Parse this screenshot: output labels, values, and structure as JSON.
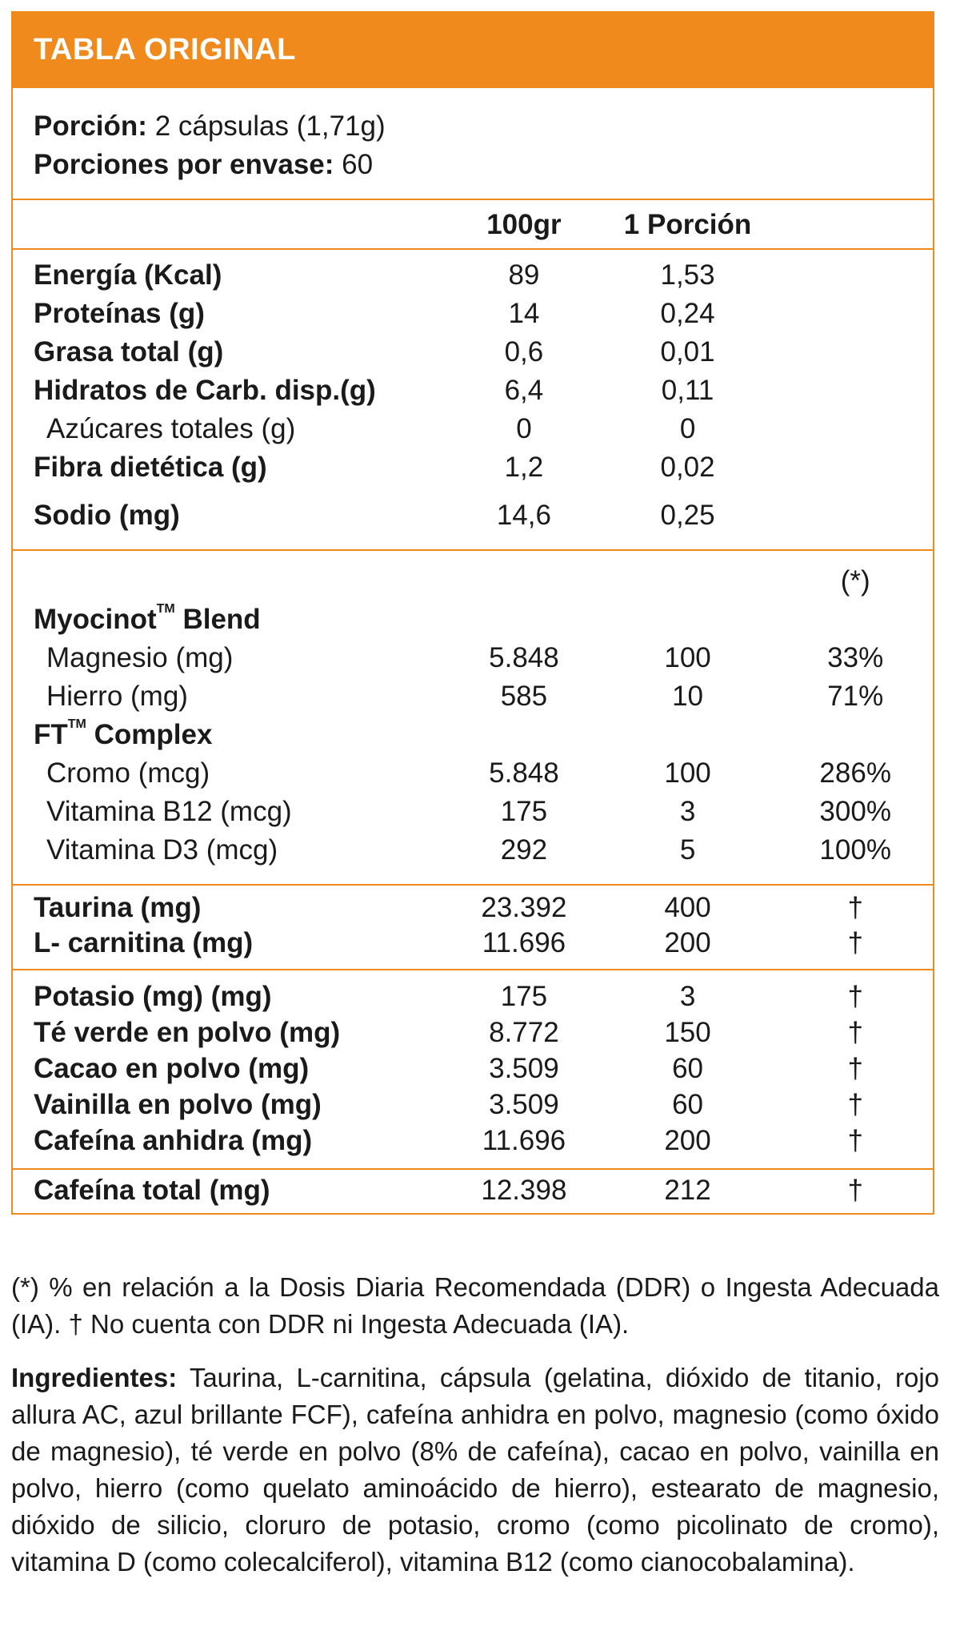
{
  "header": {
    "title": "TABLA ORIGINAL"
  },
  "serving": {
    "portion_label": "Porción:",
    "portion_value": "2 cápsulas (1,71g)",
    "servings_label": "Porciones por envase:",
    "servings_value": "60"
  },
  "columns": {
    "c1": "100gr",
    "c2": "1 Porción"
  },
  "nutrients": [
    {
      "label": "Energía (Kcal)",
      "v100": "89",
      "vp": "1,53",
      "bold": true
    },
    {
      "label": "Proteínas (g)",
      "v100": "14",
      "vp": "0,24",
      "bold": true
    },
    {
      "label": "Grasa total (g)",
      "v100": "0,6",
      "vp": "0,01",
      "bold": true
    },
    {
      "label": "Hidratos de Carb. disp.(g)",
      "v100": "6,4",
      "vp": "0,11",
      "bold": true
    },
    {
      "label": "Azúcares totales (g)",
      "v100": "0",
      "vp": "0",
      "bold": false
    },
    {
      "label": "Fibra dietética (g)",
      "v100": "1,2",
      "vp": "0,02",
      "bold": true
    },
    {
      "label": "Sodio (mg)",
      "v100": "14,6",
      "vp": "0,25",
      "bold": true
    }
  ],
  "blends": {
    "ddr_marker": "(*)",
    "myocinot_name": "Myocinot",
    "myocinot_tm": "TM",
    "myocinot_suffix": "Blend",
    "myocinot_items": [
      {
        "label": "Magnesio (mg)",
        "v100": "5.848",
        "vp": "100",
        "ddr": "33%"
      },
      {
        "label": "Hierro (mg)",
        "v100": "585",
        "vp": "10",
        "ddr": "71%"
      }
    ],
    "ft_name": "FT",
    "ft_tm": "TM",
    "ft_suffix": "Complex",
    "ft_items": [
      {
        "label": "Cromo (mcg)",
        "v100": "5.848",
        "vp": "100",
        "ddr": "286%"
      },
      {
        "label": "Vitamina B12 (mcg)",
        "v100": "175",
        "vp": "3",
        "ddr": "300%"
      },
      {
        "label": "Vitamina D3 (mcg)",
        "v100": "292",
        "vp": "5",
        "ddr": "100%"
      }
    ]
  },
  "amino": [
    {
      "label": "Taurina (mg)",
      "v100": "23.392",
      "vp": "400",
      "ddr": "†"
    },
    {
      "label": "L- carnitina (mg)",
      "v100": "11.696",
      "vp": "200",
      "ddr": "†"
    }
  ],
  "others": [
    {
      "label": "Potasio (mg) (mg)",
      "v100": "175",
      "vp": "3",
      "ddr": "†"
    },
    {
      "label": "Té verde en polvo (mg)",
      "v100": "8.772",
      "vp": "150",
      "ddr": "†"
    },
    {
      "label": "Cacao en polvo (mg)",
      "v100": "3.509",
      "vp": "60",
      "ddr": "†"
    },
    {
      "label": "Vainilla en polvo (mg)",
      "v100": "3.509",
      "vp": "60",
      "ddr": "†"
    },
    {
      "label": "Cafeína anhidra (mg)",
      "v100": "11.696",
      "vp": "200",
      "ddr": "†"
    }
  ],
  "total": {
    "label": "Cafeína total (mg)",
    "v100": "12.398",
    "vp": "212",
    "ddr": "†"
  },
  "footnote": "(*) % en relación a la Dosis Diaria Recomendada (DDR) o Ingesta Adecuada (IA). † No cuenta con DDR ni Ingesta Adecuada (IA).",
  "ingredients": {
    "label": "Ingredientes:",
    "text": "Taurina, L-carnitina, cápsula (gelatina, dióxido de titanio, rojo allura AC, azul brillante FCF), cafeína anhidra en polvo, magnesio (como óxido de magnesio), té verde en polvo (8% de cafeína), cacao en polvo, vainilla en polvo, hierro (como quelato aminoácido de hierro), estearato de magnesio, dióxido de silicio, cloruro de potasio, cromo (como picolinato de cromo), vitamina D (como colecalciferol), vitamina B12 (como cianocobalamina)."
  }
}
